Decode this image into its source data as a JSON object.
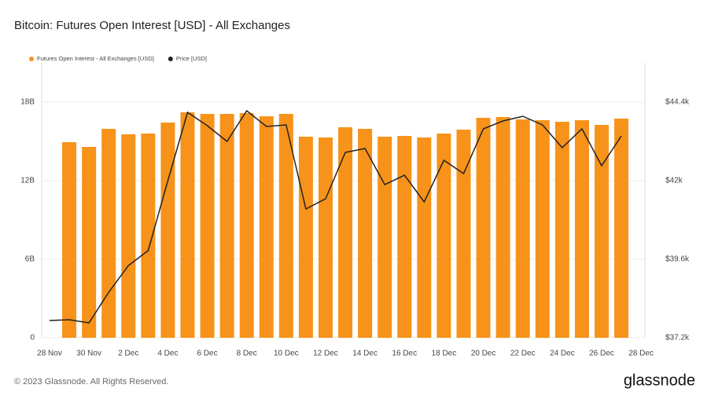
{
  "chart_data": {
    "type": "combo",
    "title": "Bitcoin: Futures Open Interest [USD] - All Exchanges",
    "footer": "© 2023 Glassnode. All Rights Reserved.",
    "brand": "glassnode",
    "categories": [
      "28 Nov",
      null,
      "30 Nov",
      null,
      "2 Dec",
      null,
      "4 Dec",
      null,
      "6 Dec",
      null,
      "8 Dec",
      null,
      "10 Dec",
      null,
      "12 Dec",
      null,
      "14 Dec",
      null,
      "16 Dec",
      null,
      "18 Dec",
      null,
      "20 Dec",
      null,
      "22 Dec",
      null,
      "24 Dec",
      null,
      "26 Dec",
      null,
      "28 Dec"
    ],
    "series": [
      {
        "name": "Futures Open Interest - All Exchanges [USD]",
        "type": "bar",
        "color": "#f7931a",
        "values": [
          null,
          14940000000,
          14580000000,
          15960000000,
          15540000000,
          15600000000,
          16440000000,
          17220000000,
          17100000000,
          17100000000,
          17160000000,
          16920000000,
          17100000000,
          15360000000,
          15300000000,
          16080000000,
          15960000000,
          15360000000,
          15420000000,
          15300000000,
          15600000000,
          15900000000,
          16800000000,
          16860000000,
          16680000000,
          16620000000,
          16500000000,
          16620000000,
          16260000000,
          16740000000,
          null
        ]
      },
      {
        "name": "Price [USD]",
        "type": "line",
        "color": "#222222",
        "axis": "y2",
        "values": [
          37728,
          37752,
          37656,
          38592,
          39408,
          39864,
          42000,
          44088,
          43680,
          43200,
          44136,
          43656,
          43704,
          41136,
          41448,
          42864,
          42984,
          41880,
          42168,
          41352,
          42624,
          42216,
          43584,
          43824,
          43968,
          43704,
          43008,
          43584,
          42456,
          43368,
          null
        ]
      }
    ],
    "ylim": [
      0,
      21000000000
    ],
    "yticks": [
      0,
      {
        "value": 6000000000,
        "label": "6B"
      },
      {
        "value": 12000000000,
        "label": "12B"
      },
      {
        "value": 18000000000,
        "label": "18B"
      }
    ],
    "y2lim": [
      37200,
      45600
    ],
    "y2ticks": [
      {
        "value": 37200,
        "label": "$37.2k"
      },
      {
        "value": 39600,
        "label": "$39.6k"
      },
      {
        "value": 42000,
        "label": "$42k"
      },
      {
        "value": 44400,
        "label": "$44.4k"
      }
    ],
    "grid": true
  }
}
